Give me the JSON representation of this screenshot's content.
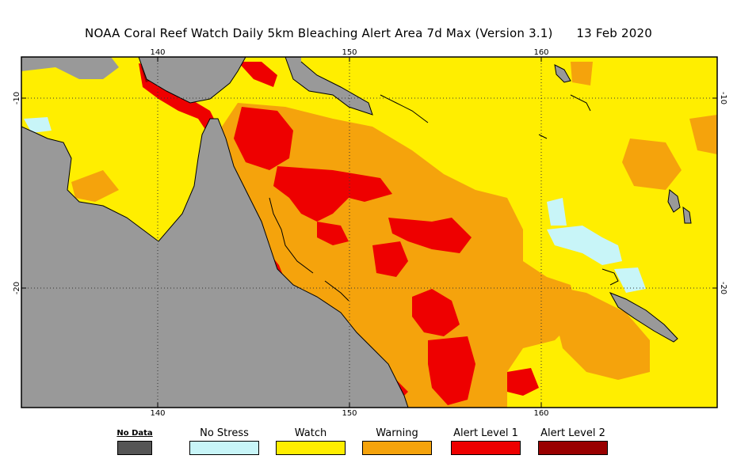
{
  "title": "NOAA Coral Reef Watch Daily 5km Bleaching Alert Area 7d Max (Version 3.1)      13 Feb 2020",
  "map": {
    "lon_ticks": [
      "140",
      "150",
      "160"
    ],
    "lat_ticks": [
      "-10",
      "-20"
    ],
    "colors": {
      "land": "#999999",
      "watch": "#ffee00",
      "warning": "#f5a30c",
      "alert1": "#ee0000",
      "no_stress": "#c8f5f8",
      "alert2": "#990000"
    }
  },
  "legend": [
    {
      "label": "No Data",
      "color": "#555555",
      "small": true
    },
    {
      "label": "No Stress",
      "color": "#c8f5f8"
    },
    {
      "label": "Watch",
      "color": "#ffee00"
    },
    {
      "label": "Warning",
      "color": "#f5a30c"
    },
    {
      "label": "Alert Level 1",
      "color": "#ee0000"
    },
    {
      "label": "Alert Level 2",
      "color": "#990000"
    }
  ]
}
